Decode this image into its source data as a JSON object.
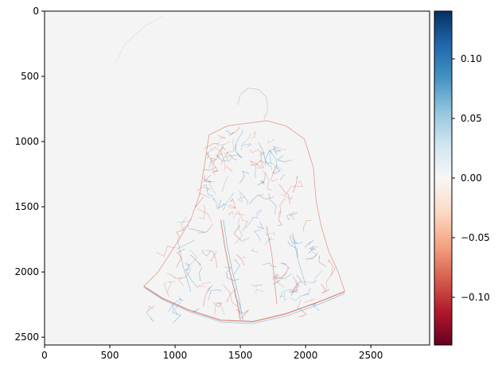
{
  "chart_data": {
    "type": "heatmap",
    "title": "",
    "xlabel": "",
    "ylabel": "",
    "x_range": [
      0,
      2950
    ],
    "y_range": [
      2560,
      0
    ],
    "x_ticks": [
      0,
      500,
      1000,
      1500,
      2000,
      2500
    ],
    "y_ticks": [
      0,
      500,
      1000,
      1500,
      2000,
      2500
    ],
    "colorbar": {
      "colormap": "RdBu",
      "range": [
        -0.14,
        0.14
      ],
      "ticks": [
        0.1,
        0.05,
        0.0,
        -0.05,
        -0.1
      ],
      "tick_labels": [
        "0.10",
        "0.05",
        "0.00",
        "−0.05",
        "−0.10"
      ]
    },
    "background_value": 0.0,
    "description_of_content": "sparse edge map; mostly near-zero values with thin red/blue edge strokes outlining a figure centered around x=750-2300, y=600-2400"
  },
  "colors": {
    "background": "#f4f4f4",
    "positive_max": "#053061",
    "negative_max": "#67001f",
    "edge_blue": "#4a8cc2",
    "edge_red": "#d6604d"
  }
}
